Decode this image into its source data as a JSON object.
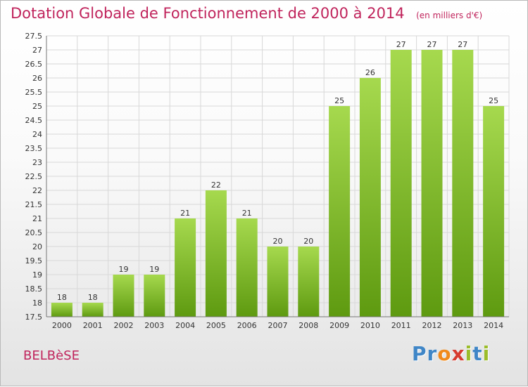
{
  "header": {
    "title": "Dotation Globale de Fonctionnement de 2000 à 2014",
    "subtitle": "(en milliers d'€)"
  },
  "commune": "BELBèSE",
  "brand": {
    "name": "Proxiti",
    "letters": [
      {
        "ch": "P",
        "color": "#3f86c7"
      },
      {
        "ch": "r",
        "color": "#3f86c7"
      },
      {
        "ch": "o",
        "color": "#f08a1c"
      },
      {
        "ch": "x",
        "color": "#d63b2f"
      },
      {
        "ch": "i",
        "color": "#9bbd2a"
      },
      {
        "ch": "t",
        "color": "#3f86c7"
      },
      {
        "ch": "i",
        "color": "#9bbd2a"
      }
    ]
  },
  "colors": {
    "bar_light": "#a6d94e",
    "bar_dark": "#5e9a10",
    "title": "#c0245c",
    "grid": "#d8d8d8"
  },
  "chart_data": {
    "type": "bar",
    "categories": [
      "2000",
      "2001",
      "2002",
      "2003",
      "2004",
      "2005",
      "2006",
      "2007",
      "2008",
      "2009",
      "2010",
      "2011",
      "2012",
      "2013",
      "2014"
    ],
    "values": [
      18,
      18,
      19,
      19,
      21,
      22,
      21,
      20,
      20,
      25,
      26,
      27,
      27,
      27,
      25
    ],
    "value_labels": [
      "18",
      "18",
      "19",
      "19",
      "21",
      "22",
      "21",
      "20",
      "20",
      "25",
      "26",
      "27",
      "27",
      "27",
      "25"
    ],
    "ylim": [
      17.5,
      27.5
    ],
    "yticks": [
      17.5,
      18,
      18.5,
      19,
      19.5,
      20,
      20.5,
      21,
      21.5,
      22,
      22.5,
      23,
      23.5,
      24,
      24.5,
      25,
      25.5,
      26,
      26.5,
      27,
      27.5
    ],
    "grid": true
  }
}
